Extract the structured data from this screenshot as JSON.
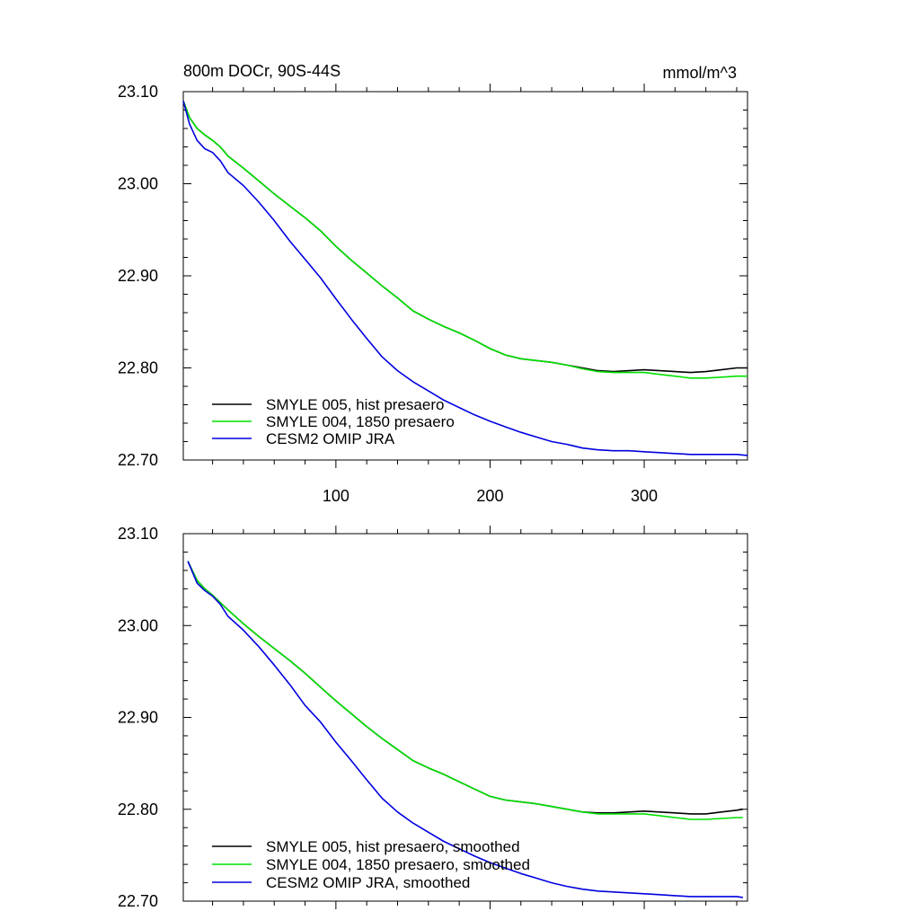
{
  "chart_data": [
    {
      "type": "line",
      "title": "800m DOCr, 90S-44S",
      "units": "mmol/m^3",
      "xlim": [
        1,
        367
      ],
      "ylim": [
        22.7,
        23.1
      ],
      "yticks": [
        "22.70",
        "22.80",
        "22.90",
        "23.00",
        "23.10"
      ],
      "xticks": [
        "100",
        "200",
        "300"
      ],
      "legend_placement": "lower-left",
      "series": [
        {
          "name": "SMYLE 005, hist presaero",
          "color": "#000000",
          "x": [
            1,
            5,
            10,
            15,
            20,
            25,
            30,
            40,
            50,
            60,
            70,
            80,
            90,
            100,
            110,
            120,
            130,
            140,
            150,
            160,
            170,
            180,
            190,
            200,
            210,
            220,
            230,
            240,
            250,
            260,
            270,
            280,
            290,
            300,
            310,
            320,
            330,
            340,
            350,
            360,
            367
          ],
          "y": [
            23.09,
            23.072,
            23.06,
            23.053,
            23.047,
            23.04,
            23.03,
            23.017,
            23.003,
            22.989,
            22.976,
            22.963,
            22.949,
            22.932,
            22.917,
            22.903,
            22.889,
            22.876,
            22.862,
            22.853,
            22.845,
            22.838,
            22.83,
            22.821,
            22.814,
            22.81,
            22.808,
            22.806,
            22.803,
            22.8,
            22.797,
            22.796,
            22.797,
            22.798,
            22.797,
            22.796,
            22.795,
            22.796,
            22.798,
            22.8,
            22.8
          ]
        },
        {
          "name": "SMYLE 004, 1850 presaero",
          "color": "#00e000",
          "x": [
            1,
            5,
            10,
            15,
            20,
            25,
            30,
            40,
            50,
            60,
            70,
            80,
            90,
            100,
            110,
            120,
            130,
            140,
            150,
            160,
            170,
            180,
            190,
            200,
            210,
            220,
            230,
            240,
            250,
            260,
            270,
            280,
            290,
            300,
            310,
            320,
            330,
            340,
            350,
            360,
            367
          ],
          "y": [
            23.09,
            23.072,
            23.06,
            23.053,
            23.047,
            23.04,
            23.03,
            23.017,
            23.003,
            22.989,
            22.976,
            22.963,
            22.949,
            22.932,
            22.917,
            22.903,
            22.889,
            22.876,
            22.862,
            22.853,
            22.845,
            22.838,
            22.83,
            22.821,
            22.814,
            22.81,
            22.808,
            22.806,
            22.803,
            22.799,
            22.796,
            22.795,
            22.795,
            22.795,
            22.793,
            22.791,
            22.789,
            22.789,
            22.79,
            22.791,
            22.791
          ]
        },
        {
          "name": "CESM2 OMIP JRA",
          "color": "#0000e0",
          "x": [
            1,
            5,
            10,
            15,
            20,
            25,
            30,
            40,
            50,
            60,
            70,
            80,
            90,
            100,
            110,
            120,
            130,
            140,
            150,
            160,
            170,
            180,
            190,
            200,
            210,
            220,
            230,
            240,
            250,
            260,
            270,
            280,
            290,
            300,
            310,
            320,
            330,
            340,
            350,
            360,
            367
          ],
          "y": [
            23.09,
            23.065,
            23.047,
            23.038,
            23.034,
            23.025,
            23.012,
            22.998,
            22.98,
            22.96,
            22.938,
            22.918,
            22.898,
            22.875,
            22.853,
            22.832,
            22.812,
            22.797,
            22.785,
            22.775,
            22.765,
            22.757,
            22.749,
            22.742,
            22.736,
            22.73,
            22.725,
            22.72,
            22.717,
            22.713,
            22.711,
            22.71,
            22.71,
            22.709,
            22.708,
            22.707,
            22.706,
            22.706,
            22.706,
            22.706,
            22.705
          ]
        }
      ]
    },
    {
      "type": "line",
      "title": "",
      "units": "",
      "xlim": [
        1,
        367
      ],
      "ylim": [
        22.7,
        23.1
      ],
      "yticks": [
        "22.70",
        "22.80",
        "22.90",
        "23.00",
        "23.10"
      ],
      "xticks": [],
      "legend_placement": "lower-left",
      "series": [
        {
          "name": "SMYLE 005, hist presaero, smoothed",
          "color": "#000000",
          "x": [
            4,
            10,
            15,
            20,
            25,
            30,
            40,
            50,
            60,
            70,
            80,
            90,
            100,
            110,
            120,
            130,
            140,
            150,
            160,
            170,
            180,
            190,
            200,
            210,
            220,
            230,
            240,
            250,
            260,
            270,
            280,
            290,
            300,
            310,
            320,
            330,
            340,
            350,
            360,
            364
          ],
          "y": [
            23.07,
            23.049,
            23.04,
            23.033,
            23.025,
            23.017,
            23.002,
            22.988,
            22.975,
            22.962,
            22.948,
            22.933,
            22.918,
            22.904,
            22.89,
            22.877,
            22.865,
            22.853,
            22.845,
            22.838,
            22.83,
            22.822,
            22.814,
            22.81,
            22.808,
            22.806,
            22.803,
            22.8,
            22.797,
            22.796,
            22.796,
            22.797,
            22.798,
            22.797,
            22.796,
            22.795,
            22.795,
            22.797,
            22.799,
            22.8
          ]
        },
        {
          "name": "SMYLE 004, 1850 presaero, smoothed",
          "color": "#00e000",
          "x": [
            4,
            10,
            15,
            20,
            25,
            30,
            40,
            50,
            60,
            70,
            80,
            90,
            100,
            110,
            120,
            130,
            140,
            150,
            160,
            170,
            180,
            190,
            200,
            210,
            220,
            230,
            240,
            250,
            260,
            270,
            280,
            290,
            300,
            310,
            320,
            330,
            340,
            350,
            360,
            364
          ],
          "y": [
            23.07,
            23.049,
            23.04,
            23.033,
            23.025,
            23.017,
            23.002,
            22.988,
            22.975,
            22.962,
            22.948,
            22.933,
            22.918,
            22.904,
            22.89,
            22.877,
            22.865,
            22.853,
            22.845,
            22.838,
            22.83,
            22.822,
            22.814,
            22.81,
            22.808,
            22.806,
            22.803,
            22.8,
            22.797,
            22.795,
            22.795,
            22.795,
            22.795,
            22.793,
            22.791,
            22.789,
            22.789,
            22.79,
            22.791,
            22.791
          ]
        },
        {
          "name": "CESM2 OMIP JRA, smoothed",
          "color": "#0000e0",
          "x": [
            4,
            10,
            15,
            20,
            25,
            30,
            40,
            50,
            60,
            70,
            80,
            90,
            100,
            110,
            120,
            130,
            140,
            150,
            160,
            170,
            180,
            190,
            200,
            210,
            220,
            230,
            240,
            250,
            260,
            270,
            280,
            290,
            300,
            310,
            320,
            330,
            340,
            350,
            360,
            364
          ],
          "y": [
            23.07,
            23.046,
            23.038,
            23.032,
            23.023,
            23.01,
            22.995,
            22.977,
            22.957,
            22.936,
            22.913,
            22.895,
            22.873,
            22.853,
            22.832,
            22.812,
            22.797,
            22.785,
            22.775,
            22.765,
            22.757,
            22.749,
            22.742,
            22.736,
            22.73,
            22.725,
            22.72,
            22.716,
            22.713,
            22.711,
            22.71,
            22.709,
            22.708,
            22.707,
            22.706,
            22.705,
            22.705,
            22.705,
            22.705,
            22.704
          ]
        }
      ]
    }
  ]
}
